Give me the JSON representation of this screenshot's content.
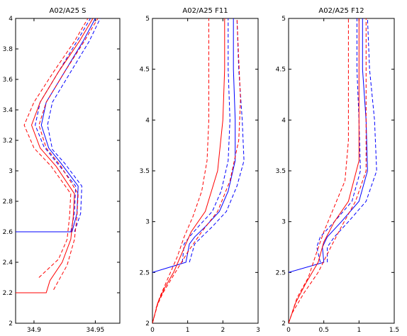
{
  "chart_data": [
    {
      "type": "line",
      "title": "A02/A25 S",
      "xlabel": "",
      "ylabel": "",
      "xlim": [
        34.885,
        34.97
      ],
      "ylim": [
        2.0,
        4.0
      ],
      "xticks": [
        34.9,
        34.95
      ],
      "xtick_labels": [
        "34.9",
        "34.95"
      ],
      "yticks": [
        2,
        2.2,
        2.4,
        2.6,
        2.8,
        3,
        3.2,
        3.4,
        3.6,
        3.8,
        4
      ],
      "ytick_labels": [
        "2",
        "2.2",
        "2.4",
        "2.6",
        "2.8",
        "3",
        "3.2",
        "3.4",
        "3.6",
        "3.8",
        "4"
      ],
      "series": [
        {
          "color": "#0000ff",
          "style": "solid",
          "points": [
            [
              34.885,
              2.6
            ],
            [
              34.931,
              2.6
            ],
            [
              34.935,
              2.72
            ],
            [
              34.936,
              2.9
            ],
            [
              34.922,
              3.05
            ],
            [
              34.912,
              3.15
            ],
            [
              34.906,
              3.3
            ],
            [
              34.91,
              3.45
            ],
            [
              34.925,
              3.65
            ],
            [
              34.94,
              3.85
            ],
            [
              34.95,
              4.0
            ]
          ]
        },
        {
          "color": "#0000ff",
          "style": "dashed",
          "points": [
            [
              34.93,
              2.6
            ],
            [
              34.933,
              2.72
            ],
            [
              34.934,
              2.9
            ],
            [
              34.919,
              3.05
            ],
            [
              34.908,
              3.16
            ],
            [
              34.901,
              3.3
            ],
            [
              34.905,
              3.45
            ],
            [
              34.92,
              3.65
            ],
            [
              34.935,
              3.85
            ],
            [
              34.946,
              4.0
            ]
          ]
        },
        {
          "color": "#0000ff",
          "style": "dashed",
          "points": [
            [
              34.933,
              2.6
            ],
            [
              34.938,
              2.72
            ],
            [
              34.939,
              2.9
            ],
            [
              34.925,
              3.05
            ],
            [
              34.915,
              3.14
            ],
            [
              34.911,
              3.3
            ],
            [
              34.915,
              3.45
            ],
            [
              34.93,
              3.65
            ],
            [
              34.945,
              3.85
            ],
            [
              34.954,
              4.0
            ]
          ]
        },
        {
          "color": "#ff0000",
          "style": "solid",
          "points": [
            [
              34.885,
              2.2
            ],
            [
              34.91,
              2.2
            ],
            [
              34.913,
              2.28
            ],
            [
              34.923,
              2.4
            ],
            [
              34.93,
              2.55
            ],
            [
              34.932,
              2.7
            ],
            [
              34.933,
              2.85
            ],
            [
              34.918,
              3.03
            ],
            [
              34.905,
              3.15
            ],
            [
              34.898,
              3.3
            ],
            [
              34.905,
              3.45
            ],
            [
              34.92,
              3.65
            ],
            [
              34.937,
              3.85
            ],
            [
              34.948,
              4.0
            ]
          ]
        },
        {
          "color": "#ff0000",
          "style": "dashed",
          "points": [
            [
              34.904,
              2.3
            ],
            [
              34.92,
              2.42
            ],
            [
              34.927,
              2.55
            ],
            [
              34.929,
              2.7
            ],
            [
              34.93,
              2.85
            ],
            [
              34.914,
              3.03
            ],
            [
              34.9,
              3.15
            ],
            [
              34.892,
              3.3
            ],
            [
              34.9,
              3.45
            ],
            [
              34.916,
              3.65
            ],
            [
              34.933,
              3.85
            ],
            [
              34.944,
              4.0
            ]
          ]
        },
        {
          "color": "#ff0000",
          "style": "dashed",
          "points": [
            [
              34.916,
              2.22
            ],
            [
              34.927,
              2.38
            ],
            [
              34.933,
              2.55
            ],
            [
              34.935,
              2.7
            ],
            [
              34.936,
              2.85
            ],
            [
              34.922,
              3.03
            ],
            [
              34.91,
              3.15
            ],
            [
              34.904,
              3.3
            ],
            [
              34.91,
              3.45
            ],
            [
              34.925,
              3.65
            ],
            [
              34.941,
              3.85
            ],
            [
              34.952,
              4.0
            ]
          ]
        }
      ]
    },
    {
      "type": "line",
      "title": "A02/A25 F11",
      "xlabel": "",
      "ylabel": "",
      "xlim": [
        0,
        3
      ],
      "ylim": [
        2.0,
        5.0
      ],
      "xticks": [
        0,
        1,
        2,
        3
      ],
      "xtick_labels": [
        "0",
        "1",
        "2",
        "3"
      ],
      "yticks": [
        2,
        2.5,
        3,
        3.5,
        4,
        4.5,
        5
      ],
      "ytick_labels": [
        "2",
        "2.5",
        "3",
        "3.5",
        "4",
        "4.5",
        "5"
      ],
      "series": [
        {
          "color": "#0000ff",
          "style": "solid",
          "points": [
            [
              0,
              2.5
            ],
            [
              0.95,
              2.6
            ],
            [
              1.05,
              2.78
            ],
            [
              1.2,
              2.85
            ],
            [
              1.5,
              2.95
            ],
            [
              1.9,
              3.1
            ],
            [
              2.15,
              3.3
            ],
            [
              2.35,
              3.6
            ],
            [
              2.35,
              4.0
            ],
            [
              2.3,
              4.5
            ],
            [
              2.3,
              5.0
            ]
          ]
        },
        {
          "color": "#0000ff",
          "style": "dashed",
          "points": [
            [
              0.85,
              2.6
            ],
            [
              0.9,
              2.78
            ],
            [
              1.05,
              2.85
            ],
            [
              1.3,
              2.95
            ],
            [
              1.7,
              3.1
            ],
            [
              1.95,
              3.3
            ],
            [
              2.15,
              3.6
            ],
            [
              2.2,
              4.0
            ],
            [
              2.15,
              4.5
            ],
            [
              2.15,
              5.0
            ]
          ]
        },
        {
          "color": "#0000ff",
          "style": "dashed",
          "points": [
            [
              1.05,
              2.6
            ],
            [
              1.2,
              2.78
            ],
            [
              1.4,
              2.85
            ],
            [
              1.7,
              2.95
            ],
            [
              2.1,
              3.1
            ],
            [
              2.4,
              3.35
            ],
            [
              2.6,
              3.6
            ],
            [
              2.55,
              4.0
            ],
            [
              2.45,
              4.5
            ],
            [
              2.4,
              5.0
            ]
          ]
        },
        {
          "color": "#ff0000",
          "style": "solid",
          "points": [
            [
              0,
              2.0
            ],
            [
              0.15,
              2.2
            ],
            [
              0.35,
              2.35
            ],
            [
              0.6,
              2.5
            ],
            [
              0.85,
              2.7
            ],
            [
              1.1,
              2.9
            ],
            [
              1.5,
              3.1
            ],
            [
              1.85,
              3.5
            ],
            [
              2.0,
              4.0
            ],
            [
              2.05,
              4.5
            ],
            [
              2.05,
              5.0
            ]
          ]
        },
        {
          "color": "#ff0000",
          "style": "dashed",
          "points": [
            [
              0,
              2.0
            ],
            [
              0.2,
              2.25
            ],
            [
              0.45,
              2.45
            ],
            [
              0.7,
              2.65
            ],
            [
              0.9,
              2.85
            ],
            [
              1.15,
              3.05
            ],
            [
              1.4,
              3.3
            ],
            [
              1.55,
              3.6
            ],
            [
              1.6,
              4.0
            ],
            [
              1.6,
              4.5
            ],
            [
              1.6,
              5.0
            ]
          ]
        },
        {
          "color": "#ff0000",
          "style": "dashed",
          "points": [
            [
              0.1,
              2.15
            ],
            [
              0.3,
              2.3
            ],
            [
              0.65,
              2.5
            ],
            [
              1.0,
              2.7
            ],
            [
              1.4,
              2.9
            ],
            [
              1.85,
              3.1
            ],
            [
              2.2,
              3.4
            ],
            [
              2.45,
              3.8
            ],
            [
              2.5,
              4.2
            ],
            [
              2.45,
              4.6
            ],
            [
              2.4,
              5.0
            ]
          ]
        }
      ]
    },
    {
      "type": "line",
      "title": "A02/A25 F12",
      "xlabel": "",
      "ylabel": "",
      "xlim": [
        0,
        1.5
      ],
      "ylim": [
        2.0,
        5.0
      ],
      "xticks": [
        0,
        0.5,
        1,
        1.5
      ],
      "xtick_labels": [
        "0",
        "0.5",
        "1",
        "1.5"
      ],
      "yticks": [
        2,
        2.5,
        3,
        3.5,
        4,
        4.5,
        5
      ],
      "ytick_labels": [
        "2",
        "2.5",
        "3",
        "3.5",
        "4",
        "4.5",
        "5"
      ],
      "series": [
        {
          "color": "#0000ff",
          "style": "solid",
          "points": [
            [
              0,
              2.5
            ],
            [
              0.5,
              2.6
            ],
            [
              0.48,
              2.75
            ],
            [
              0.55,
              2.85
            ],
            [
              0.75,
              3.0
            ],
            [
              1.0,
              3.2
            ],
            [
              1.12,
              3.5
            ],
            [
              1.1,
              4.0
            ],
            [
              1.05,
              4.5
            ],
            [
              1.05,
              5.0
            ]
          ]
        },
        {
          "color": "#0000ff",
          "style": "dashed",
          "points": [
            [
              0.45,
              2.6
            ],
            [
              0.4,
              2.75
            ],
            [
              0.45,
              2.85
            ],
            [
              0.65,
              3.0
            ],
            [
              0.9,
              3.2
            ],
            [
              1.02,
              3.5
            ],
            [
              1.0,
              4.0
            ],
            [
              0.97,
              4.5
            ],
            [
              0.97,
              5.0
            ]
          ]
        },
        {
          "color": "#0000ff",
          "style": "dashed",
          "points": [
            [
              0.55,
              2.6
            ],
            [
              0.55,
              2.75
            ],
            [
              0.65,
              2.85
            ],
            [
              0.85,
              3.0
            ],
            [
              1.1,
              3.2
            ],
            [
              1.25,
              3.5
            ],
            [
              1.22,
              4.0
            ],
            [
              1.15,
              4.5
            ],
            [
              1.12,
              5.0
            ]
          ]
        },
        {
          "color": "#ff0000",
          "style": "solid",
          "points": [
            [
              0,
              2.0
            ],
            [
              0.1,
              2.2
            ],
            [
              0.25,
              2.4
            ],
            [
              0.42,
              2.6
            ],
            [
              0.5,
              2.8
            ],
            [
              0.65,
              3.0
            ],
            [
              0.85,
              3.2
            ],
            [
              1.0,
              3.6
            ],
            [
              1.0,
              4.0
            ],
            [
              1.0,
              4.5
            ],
            [
              1.0,
              5.0
            ]
          ]
        },
        {
          "color": "#ff0000",
          "style": "dashed",
          "points": [
            [
              0,
              2.0
            ],
            [
              0.12,
              2.25
            ],
            [
              0.28,
              2.45
            ],
            [
              0.4,
              2.7
            ],
            [
              0.5,
              2.9
            ],
            [
              0.62,
              3.1
            ],
            [
              0.8,
              3.4
            ],
            [
              0.85,
              3.8
            ],
            [
              0.85,
              4.4
            ],
            [
              0.85,
              5.0
            ]
          ]
        },
        {
          "color": "#ff0000",
          "style": "dashed",
          "points": [
            [
              0.05,
              2.1
            ],
            [
              0.22,
              2.3
            ],
            [
              0.42,
              2.5
            ],
            [
              0.6,
              2.75
            ],
            [
              0.75,
              2.95
            ],
            [
              0.95,
              3.2
            ],
            [
              1.1,
              3.5
            ],
            [
              1.1,
              4.0
            ],
            [
              1.1,
              4.5
            ],
            [
              1.1,
              5.0
            ]
          ]
        }
      ]
    }
  ]
}
